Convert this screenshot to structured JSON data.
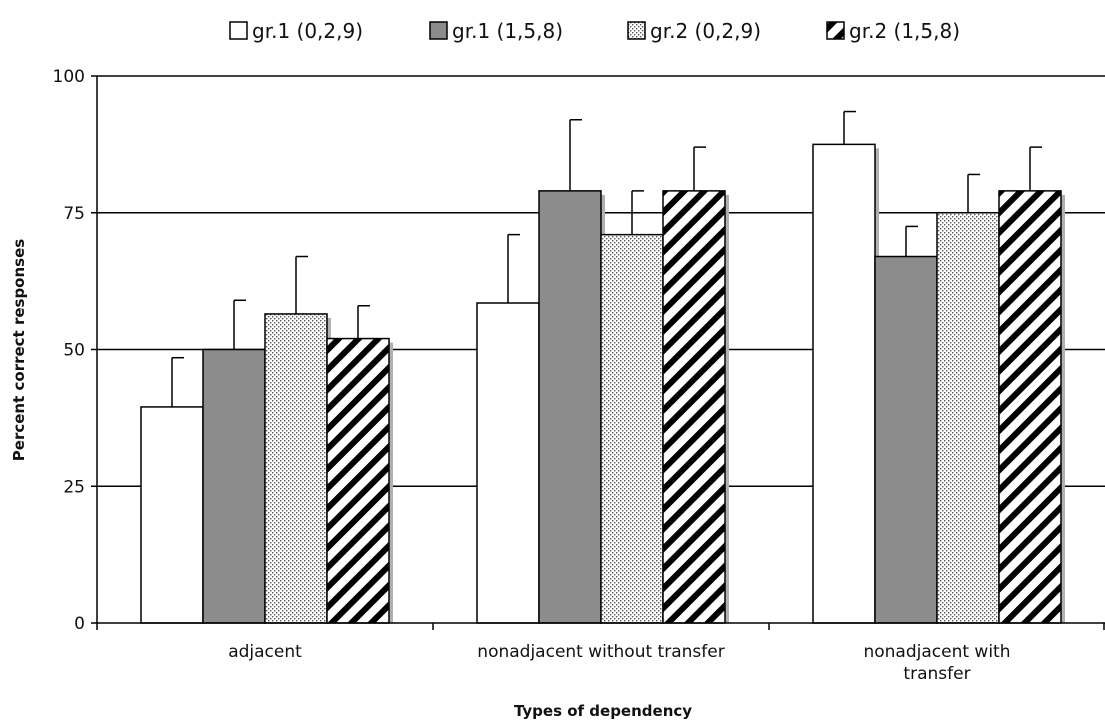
{
  "chart_data": {
    "type": "bar",
    "categories": [
      "adjacent",
      "nonadjacent without transfer",
      "nonadjacent with transfer"
    ],
    "category_lines": [
      [
        "adjacent"
      ],
      [
        "nonadjacent without transfer"
      ],
      [
        "nonadjacent with",
        "transfer"
      ]
    ],
    "series": [
      {
        "name": "gr.1 (0,2,9)",
        "values": [
          39.5,
          58.5,
          87.5
        ],
        "errors": [
          9,
          12.5,
          6
        ],
        "fill": "white"
      },
      {
        "name": "gr.1 (1,5,8)",
        "values": [
          50,
          79,
          67
        ],
        "errors": [
          9,
          13,
          5.5
        ],
        "fill": "gray"
      },
      {
        "name": "gr.2 (0,2,9)",
        "values": [
          56.5,
          71,
          75
        ],
        "errors": [
          10.5,
          8,
          7
        ],
        "fill": "dotted"
      },
      {
        "name": "gr.2 (1,5,8)",
        "values": [
          52,
          79,
          79
        ],
        "errors": [
          6,
          8,
          8
        ],
        "fill": "hatched"
      }
    ],
    "title": "",
    "xlabel": "Types of dependency",
    "ylabel": "Percent correct responses",
    "ylim": [
      0,
      100
    ],
    "yticks": [
      0,
      25,
      50,
      75,
      100
    ],
    "grid": true,
    "legend_position": "top",
    "colors": {
      "gray": "#8c8c8c",
      "shadow": "#b0b0b0",
      "outline": "#000000"
    }
  }
}
